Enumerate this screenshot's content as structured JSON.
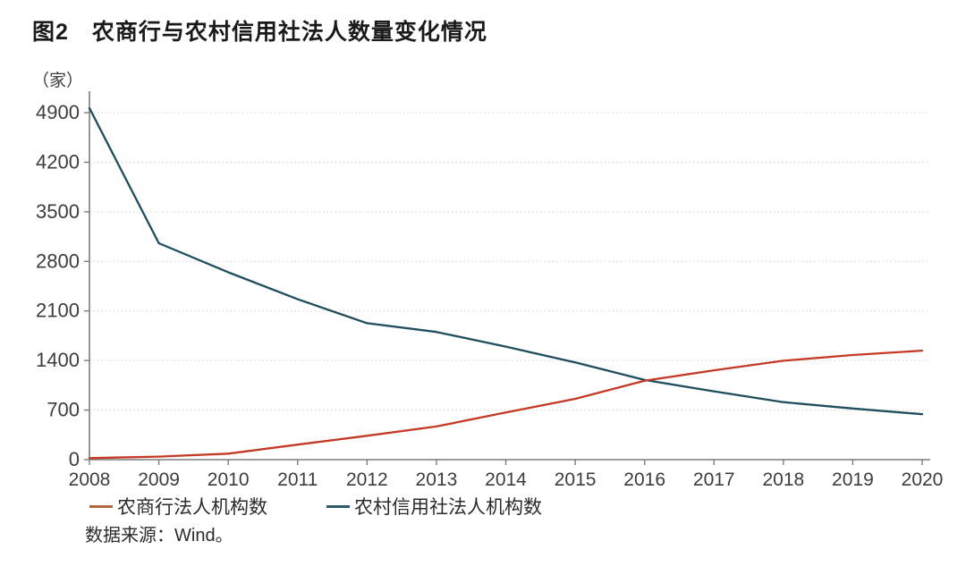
{
  "title": "图2　农商行与农村信用社法人数量变化情况",
  "source_note": "数据来源：Wind。",
  "colors": {
    "background": "#ffffff",
    "axis": "#7c7c7c",
    "gridline": "#d9d9d4",
    "tick_text": "#3d3d3d",
    "title_text": "#1a1a1a"
  },
  "chart_data": {
    "type": "line",
    "title": "图2　农商行与农村信用社法人数量变化情况",
    "unit_label": "（家）",
    "xlabel": "",
    "ylabel": "（家）",
    "x": [
      2008,
      2009,
      2010,
      2011,
      2012,
      2013,
      2014,
      2015,
      2016,
      2017,
      2018,
      2019,
      2020
    ],
    "series": [
      {
        "name": "农商行法人机构数",
        "color": "#c43a26",
        "legend_color": "#b2683e",
        "values": [
          22,
          43,
          85,
          212,
          337,
          468,
          665,
          859,
          1114,
          1262,
          1397,
          1478,
          1539
        ]
      },
      {
        "name": "农村信用社法人机构数",
        "color": "#1f4e5e",
        "legend_color": "#2c5b68",
        "values": [
          4965,
          3056,
          2646,
          2265,
          1927,
          1803,
          1596,
          1373,
          1125,
          965,
          812,
          722,
          641
        ]
      }
    ],
    "ylim": [
      0,
      4900
    ],
    "yticks": [
      0,
      700,
      1400,
      2100,
      2800,
      3500,
      4200,
      4900
    ],
    "legend_position": "bottom",
    "grid": "horizontal-dotted",
    "source": "数据来源：Wind。"
  }
}
